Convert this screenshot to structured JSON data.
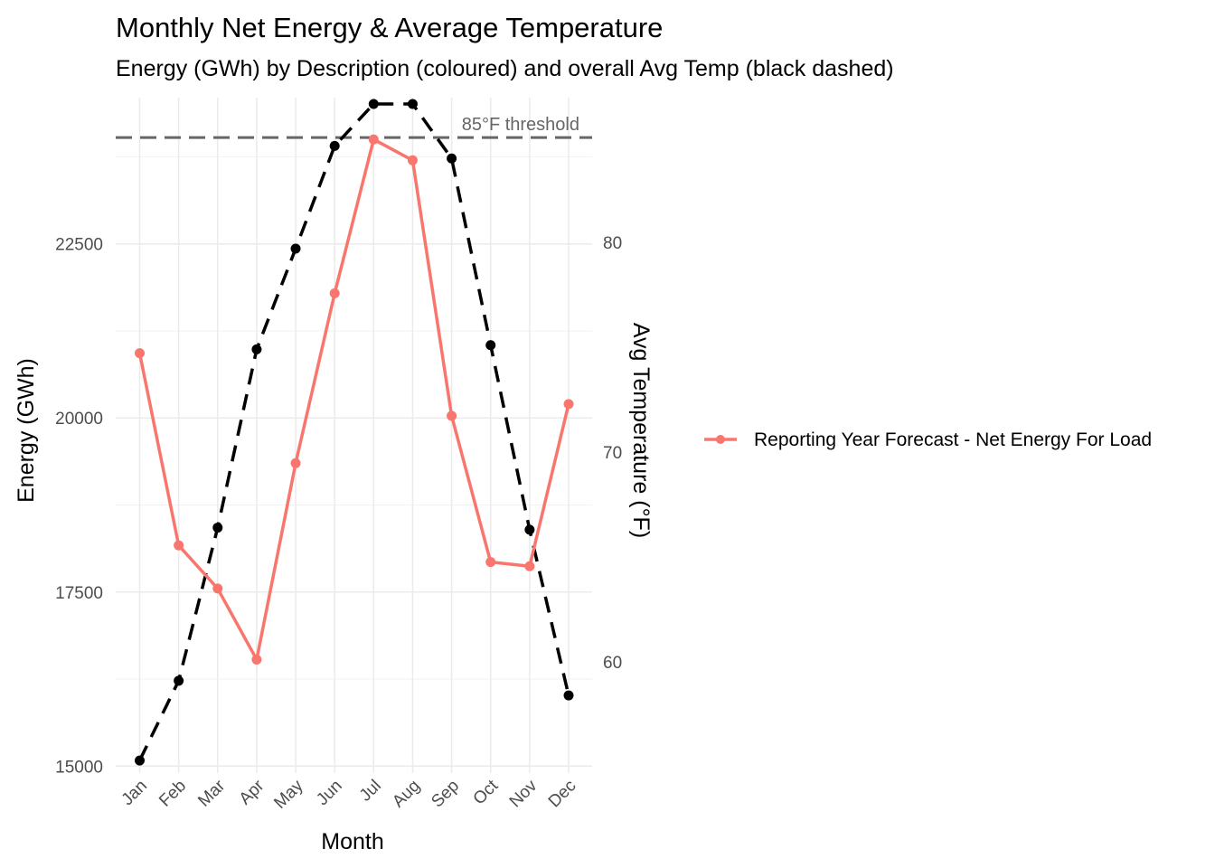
{
  "chart_data": {
    "type": "line",
    "title": "Monthly Net Energy & Average Temperature",
    "subtitle": "Energy (GWh) by Description (coloured) and overall Avg Temp (black dashed)",
    "xlabel": "Month",
    "ylabel": "Energy (GWh)",
    "y2label": "Avg Temperature (°F)",
    "categories": [
      "Jan",
      "Feb",
      "Mar",
      "Apr",
      "May",
      "Jun",
      "Jul",
      "Aug",
      "Sep",
      "Oct",
      "Nov",
      "Dec"
    ],
    "ylim": [
      14900,
      24600
    ],
    "yticks": [
      15000,
      17500,
      20000,
      22500
    ],
    "y2lim": [
      54.7,
      86.9
    ],
    "y2ticks": [
      60,
      70,
      80
    ],
    "grid": true,
    "legend_position": "right",
    "series": [
      {
        "name": "Reporting Year Forecast - Net Energy For Load",
        "axis": "left",
        "color": "#F8766D",
        "style": "solid",
        "values": [
          20930,
          18170,
          17550,
          16530,
          19350,
          21790,
          24000,
          23700,
          20030,
          17930,
          17870,
          20200
        ]
      },
      {
        "axis": "right",
        "color": "#000000",
        "style": "dashed",
        "values": [
          55.3,
          59.1,
          66.4,
          74.9,
          79.7,
          84.6,
          86.6,
          86.6,
          84.0,
          75.1,
          66.3,
          58.4
        ]
      }
    ],
    "reference_line": {
      "axis": "right",
      "value": 85,
      "color": "#666666",
      "style": "dashed",
      "label": "85°F threshold"
    }
  }
}
